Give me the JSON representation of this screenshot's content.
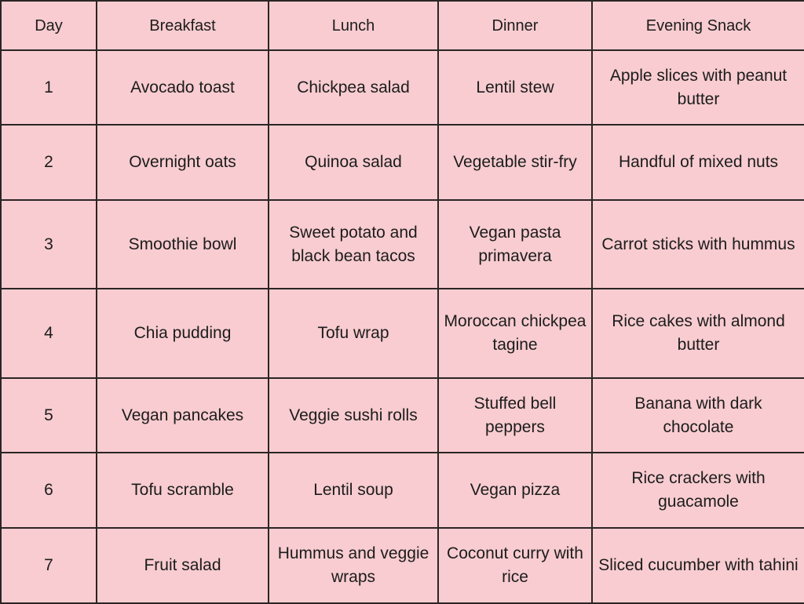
{
  "table": {
    "headers": [
      "Day",
      "Breakfast",
      "Lunch",
      "Dinner",
      "Evening Snack"
    ],
    "rows": [
      {
        "day": "1",
        "breakfast": "Avocado toast",
        "lunch": "Chickpea salad",
        "dinner": "Lentil stew",
        "snack": "Apple slices with peanut butter"
      },
      {
        "day": "2",
        "breakfast": "Overnight oats",
        "lunch": "Quinoa salad",
        "dinner": "Vegetable stir-fry",
        "snack": "Handful of mixed nuts"
      },
      {
        "day": "3",
        "breakfast": "Smoothie bowl",
        "lunch": "Sweet potato and black bean tacos",
        "dinner": "Vegan pasta primavera",
        "snack": "Carrot sticks with hummus"
      },
      {
        "day": "4",
        "breakfast": "Chia pudding",
        "lunch": "Tofu wrap",
        "dinner": "Moroccan chickpea tagine",
        "snack": "Rice cakes with almond butter"
      },
      {
        "day": "5",
        "breakfast": "Vegan pancakes",
        "lunch": "Veggie sushi rolls",
        "dinner": "Stuffed bell peppers",
        "snack": "Banana with dark chocolate"
      },
      {
        "day": "6",
        "breakfast": "Tofu scramble",
        "lunch": "Lentil soup",
        "dinner": "Vegan pizza",
        "snack": "Rice crackers with guacamole"
      },
      {
        "day": "7",
        "breakfast": "Fruit salad",
        "lunch": "Hummus and veggie wraps",
        "dinner": "Coconut curry with rice",
        "snack": "Sliced cucumber with tahini"
      }
    ]
  },
  "colors": {
    "background": "#f8ccd0",
    "border": "#2b2525",
    "text": "#1c1c1c"
  }
}
